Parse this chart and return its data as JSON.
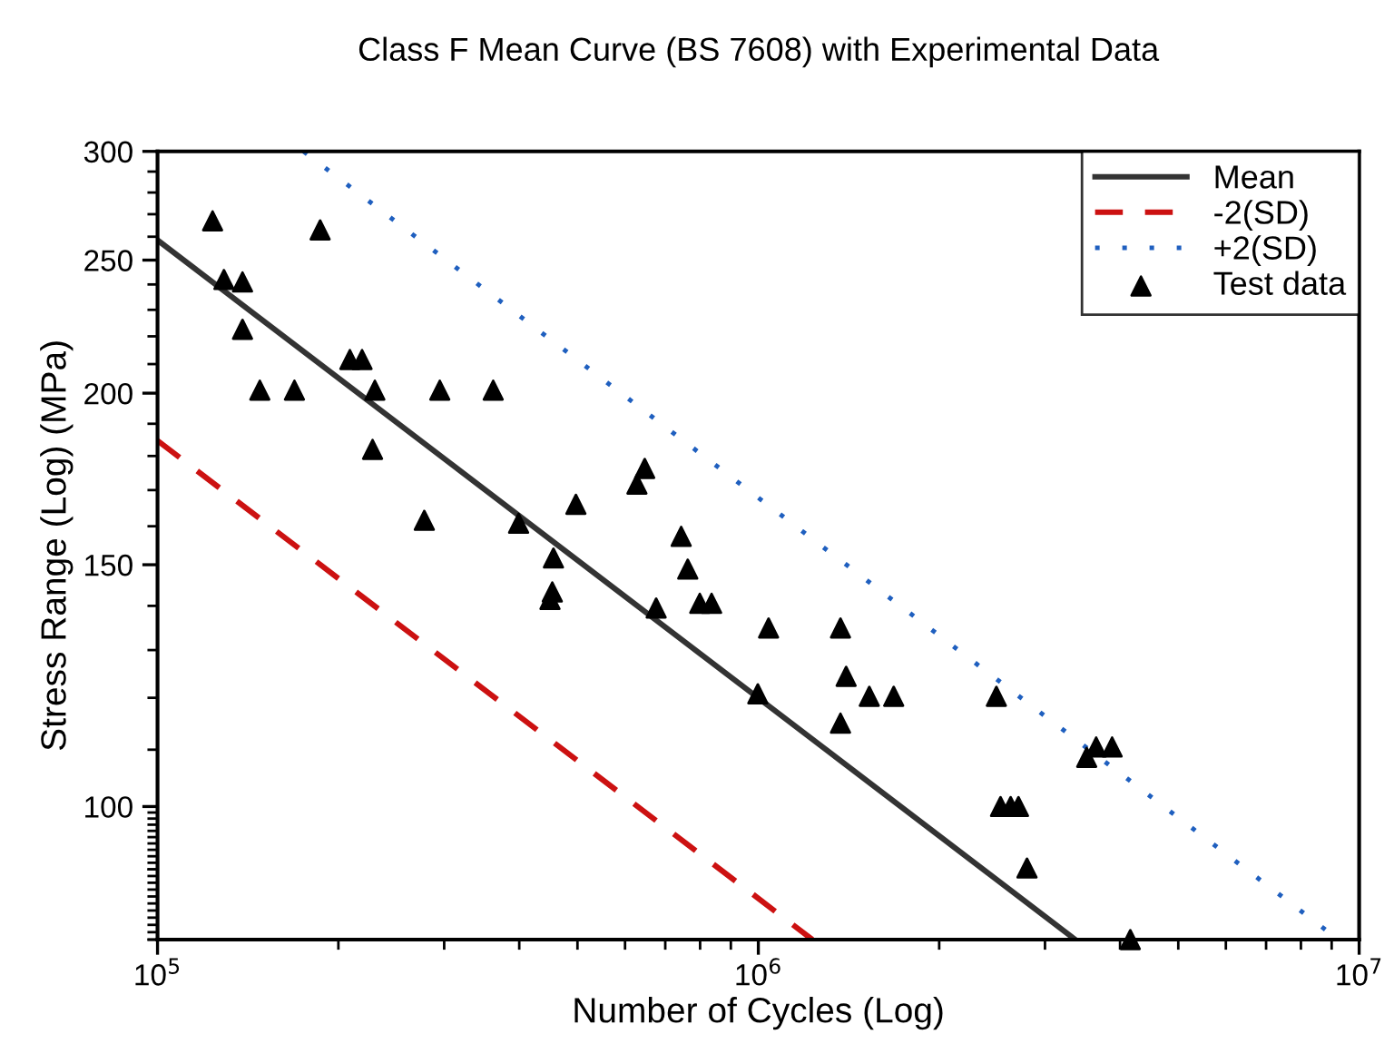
{
  "chart_data": {
    "type": "line",
    "title": "Class F Mean Curve (BS 7608) with Experimental Data",
    "xlabel": "Number of Cycles (Log)",
    "ylabel": "Stress Range (Log) (MPa)",
    "log": "xy",
    "xlim": [
      100000,
      10000000
    ],
    "ylim": [
      80,
      300
    ],
    "xticks": [
      {
        "value": 100000,
        "label": "10$^{5}$"
      },
      {
        "value": 1000000,
        "label": "10$^{6}$"
      },
      {
        "value": 10000000,
        "label": "10$^{7}$"
      }
    ],
    "yticks": [
      100,
      150,
      200,
      250,
      300
    ],
    "grid": false,
    "legend": "top right",
    "series": [
      {
        "name": "Mean",
        "line_style": "solid",
        "marker": "none",
        "color": "#333333",
        "x": [
          100000,
          3370000
        ],
        "values": [
          258.5,
          80
        ]
      },
      {
        "name": "-2(SD)",
        "line_style": "dashed",
        "marker": "none",
        "color": "#cc1111",
        "x": [
          100000,
          1230000
        ],
        "values": [
          184.7,
          80
        ]
      },
      {
        "name": "+2(SD)",
        "line_style": "dotted",
        "marker": "none",
        "color": "#1f5fbf",
        "x": [
          175000,
          9240000
        ],
        "values": [
          300,
          80
        ]
      },
      {
        "name": "Test data",
        "type": "scatter",
        "marker": "triangle",
        "color": "#000000",
        "x": [
          123500,
          129000,
          138500,
          138500,
          186500,
          148000,
          169000,
          209000,
          219000,
          230000,
          228000,
          278000,
          295000,
          362000,
          399000,
          497000,
          456000,
          454000,
          450000,
          628000,
          647000,
          744000,
          763000,
          676000,
          799000,
          836000,
          1040000,
          1370000,
          998000,
          1400000,
          1530000,
          1680000,
          1370000,
          2490000,
          3520000,
          3650000,
          3880000,
          2530000,
          2630000,
          2710000,
          2800000,
          4160000
        ],
        "values": [
          267,
          242,
          241,
          222.6,
          263,
          201,
          201,
          211.6,
          211.6,
          201,
          182,
          161.6,
          201,
          201,
          160.8,
          166,
          151.7,
          143.3,
          141.5,
          171.7,
          176.3,
          157.3,
          148.9,
          139.5,
          140.6,
          140.6,
          134.9,
          134.9,
          120.8,
          124.4,
          120.3,
          120.3,
          115,
          120.3,
          108.6,
          110.5,
          110.5,
          100,
          100,
          100,
          90.2,
          80
        ]
      }
    ]
  }
}
